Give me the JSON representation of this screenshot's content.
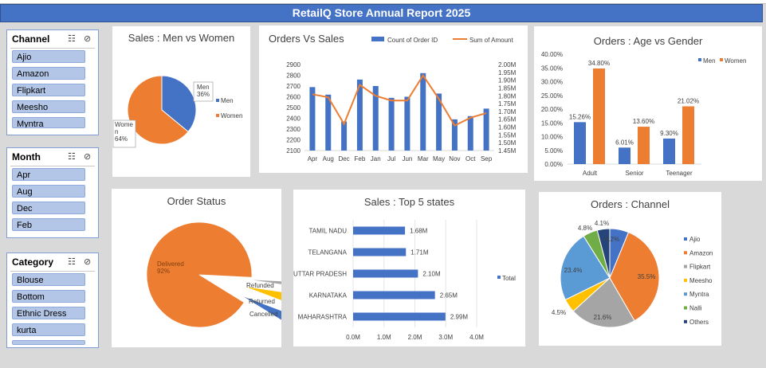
{
  "report_title": "RetailQ Store Annual Report 2025",
  "slicers": [
    {
      "key": "channel",
      "title": "Channel",
      "items": [
        "Ajio",
        "Amazon",
        "Flipkart",
        "Meesho",
        "Myntra"
      ]
    },
    {
      "key": "month",
      "title": "Month",
      "items": [
        "Apr",
        "Aug",
        "Dec",
        "Feb"
      ]
    },
    {
      "key": "category",
      "title": "Category",
      "items": [
        "Blouse",
        "Bottom",
        "Ethnic Dress",
        "kurta"
      ]
    }
  ],
  "colors": {
    "blue": "#4472c4",
    "orange": "#ed7d31",
    "gray": "#a5a5a5",
    "yellow": "#ffc000",
    "lightblue": "#5b9bd5",
    "green": "#70ad47",
    "navy": "#264478"
  },
  "chart_data": [
    {
      "id": "men_women",
      "type": "pie",
      "title": "Sales : Men vs Women",
      "slices": [
        {
          "label": "Men",
          "value": 36,
          "text": "Men\n36%"
        },
        {
          "label": "Women",
          "value": 64,
          "text": "Wome\nn\n64%"
        }
      ],
      "legend": "right"
    },
    {
      "id": "orders_sales",
      "type": "bar",
      "title": "Orders Vs Sales",
      "categories": [
        "Apr",
        "Aug",
        "Dec",
        "Feb",
        "Jan",
        "Jul",
        "Jun",
        "Mar",
        "May",
        "Nov",
        "Oct",
        "Sep"
      ],
      "series": [
        {
          "name": "Count of Order ID",
          "type": "bar",
          "axis": "left",
          "values": [
            2690,
            2620,
            2370,
            2760,
            2700,
            2590,
            2600,
            2820,
            2630,
            2390,
            2420,
            2490
          ]
        },
        {
          "name": "Sum of Amount",
          "type": "line",
          "axis": "right",
          "values": [
            1.81,
            1.79,
            1.62,
            1.87,
            1.8,
            1.77,
            1.77,
            1.93,
            1.78,
            1.61,
            1.66,
            1.69
          ]
        }
      ],
      "ylim": [
        2100,
        2900
      ],
      "yticks": [
        "2100",
        "2200",
        "2300",
        "2400",
        "2500",
        "2600",
        "2700",
        "2800",
        "2900"
      ],
      "y2lim": [
        1.45,
        2.0
      ],
      "y2ticks": [
        "1.45M",
        "1.50M",
        "1.55M",
        "1.60M",
        "1.65M",
        "1.70M",
        "1.75M",
        "1.80M",
        "1.85M",
        "1.90M",
        "1.95M",
        "2.00M"
      ],
      "legend": "top"
    },
    {
      "id": "age_gender",
      "type": "bar",
      "title": "Orders : Age vs Gender",
      "categories": [
        "Adult",
        "Senior",
        "Teenager"
      ],
      "series": [
        {
          "name": "Men",
          "values": [
            15.26,
            6.01,
            9.3
          ],
          "labels": [
            "15.26%",
            "6.01%",
            "9.30%"
          ]
        },
        {
          "name": "Women",
          "values": [
            34.8,
            13.6,
            21.02
          ],
          "labels": [
            "34.80%",
            "13.60%",
            "21.02%"
          ]
        }
      ],
      "ylim": [
        0,
        40
      ],
      "yticks": [
        "0.00%",
        "5.00%",
        "10.00%",
        "15.00%",
        "20.00%",
        "25.00%",
        "30.00%",
        "35.00%",
        "40.00%"
      ],
      "legend": "top-right"
    },
    {
      "id": "order_status",
      "type": "pie",
      "title": "Order Status",
      "slices": [
        {
          "label": "Delivered",
          "value": 92,
          "text": "Delivered\n92%"
        },
        {
          "label": "Refunded",
          "value": 1.5,
          "text": "Refunded"
        },
        {
          "label": "Returned",
          "value": 3.5,
          "text": "Returned"
        },
        {
          "label": "Cancelled",
          "value": 3,
          "text": "Cancelled"
        }
      ]
    },
    {
      "id": "top_states",
      "type": "bar",
      "orientation": "horizontal",
      "title": "Sales : Top 5 states",
      "categories": [
        "MAHARASHTRA",
        "KARNATAKA",
        "UTTAR PRADESH",
        "TELANGANA",
        "TAMIL NADU"
      ],
      "series": [
        {
          "name": "Total",
          "values": [
            2.99,
            2.65,
            2.1,
            1.71,
            1.68
          ],
          "labels": [
            "2.99M",
            "2.65M",
            "2.10M",
            "1.71M",
            "1.68M"
          ]
        }
      ],
      "xlim": [
        0,
        4
      ],
      "xticks": [
        "0.0M",
        "1.0M",
        "2.0M",
        "3.0M",
        "4.0M"
      ],
      "legend": "right"
    },
    {
      "id": "channel",
      "type": "pie",
      "title": "Orders : Channel",
      "slices": [
        {
          "label": "Ajio",
          "value": 6.2,
          "text": "6.2%"
        },
        {
          "label": "Amazon",
          "value": 35.5,
          "text": "35.5%"
        },
        {
          "label": "Flipkart",
          "value": 21.6,
          "text": "21.6%"
        },
        {
          "label": "Meesho",
          "value": 4.5,
          "text": "4.5%"
        },
        {
          "label": "Myntra",
          "value": 23.4,
          "text": "23.4%"
        },
        {
          "label": "Nalli",
          "value": 4.8,
          "text": "4.8%"
        },
        {
          "label": "Others",
          "value": 4.1,
          "text": "4.1%"
        }
      ],
      "legend": "right"
    }
  ]
}
